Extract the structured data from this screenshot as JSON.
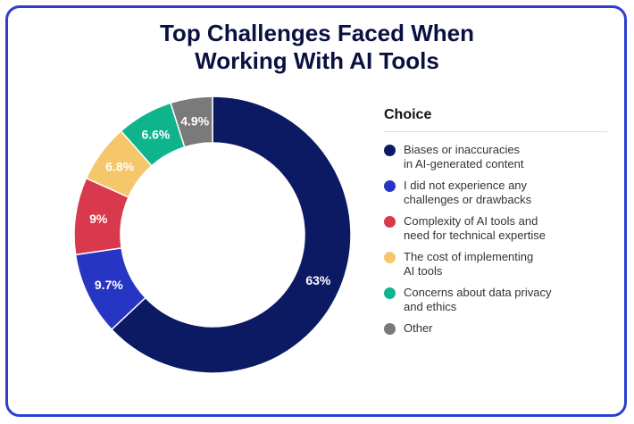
{
  "chart_data": {
    "type": "pie",
    "title_lines": [
      "Top Challenges Faced When",
      "Working With AI Tools"
    ],
    "legend_title": "Choice",
    "legend_placement": "right",
    "donut": true,
    "slices": [
      {
        "label": "Biases or inaccuracies in AI-generated content",
        "value": 63,
        "display": "63%",
        "color": "#0b1a63"
      },
      {
        "label": "I did not experience any challenges or drawbacks",
        "value": 9.7,
        "display": "9.7%",
        "color": "#2735c4"
      },
      {
        "label": "Complexity of AI tools and need for technical expertise",
        "value": 9,
        "display": "9%",
        "color": "#d8394c"
      },
      {
        "label": "The cost of implementing AI tools",
        "value": 6.8,
        "display": "6.8%",
        "color": "#f6c66a"
      },
      {
        "label": "Concerns about data privacy and ethics",
        "value": 6.6,
        "display": "6.6%",
        "color": "#10b48c"
      },
      {
        "label": "Other",
        "value": 4.9,
        "display": "4.9%",
        "color": "#7a7a7a"
      }
    ]
  },
  "legend_lines": [
    [
      "Biases or inaccuracies",
      "in AI-generated content"
    ],
    [
      "I did not experience any",
      "challenges or drawbacks"
    ],
    [
      "Complexity of AI tools and",
      "need for technical expertise"
    ],
    [
      "The cost of implementing",
      "AI tools"
    ],
    [
      "Concerns about data privacy",
      "and ethics"
    ],
    [
      "Other"
    ]
  ]
}
